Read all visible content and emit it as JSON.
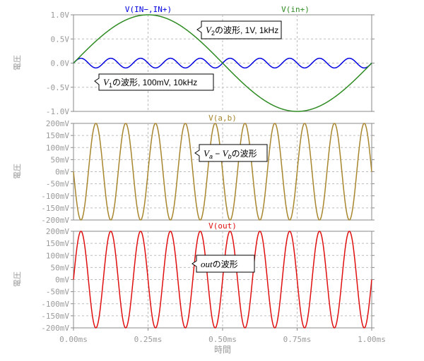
{
  "chart_data": [
    {
      "type": "line",
      "ylabel": "電圧",
      "xlim": [
        0,
        1.0
      ],
      "ylim": [
        -1.0,
        1.0
      ],
      "yticks": [
        "1.0V",
        "0.5V",
        "0.0V",
        "-0.5V",
        "-1.0V"
      ],
      "ytick_values": [
        1.0,
        0.5,
        0.0,
        -0.5,
        -1.0
      ],
      "grid": true,
      "series": [
        {
          "name": "V(IN−,IN+)",
          "color": "#0000e0",
          "amplitude": 0.1,
          "frequency_khz": 10,
          "phase": "sine"
        },
        {
          "name": "V(in+)",
          "color": "#2e8b22",
          "amplitude": 1.0,
          "frequency_khz": 1,
          "phase": "sine"
        }
      ],
      "annotations": [
        {
          "label": "V2の波形, 1V, 1kHz"
        },
        {
          "label": "V1の波形, 100mV, 10kHz"
        }
      ]
    },
    {
      "type": "line",
      "ylabel": "電圧",
      "xlim": [
        0,
        1.0
      ],
      "ylim": [
        -200,
        200
      ],
      "yticks": [
        "200mV",
        "150mV",
        "100mV",
        "50mV",
        "0mV",
        "-50mV",
        "-100mV",
        "-150mV",
        "-200mV"
      ],
      "ytick_values": [
        200,
        150,
        100,
        50,
        0,
        -50,
        -100,
        -150,
        -200
      ],
      "grid": true,
      "series": [
        {
          "name": "V(a,b)",
          "color": "#a8862e",
          "amplitude": 200,
          "frequency_khz": 10,
          "phase": "negative-sine"
        }
      ],
      "annotations": [
        {
          "label": "Va − Vbの波形"
        }
      ]
    },
    {
      "type": "line",
      "ylabel": "電圧",
      "xlabel": "時間",
      "xlim": [
        0,
        1.0
      ],
      "ylim": [
        -200,
        200
      ],
      "yticks": [
        "200mV",
        "150mV",
        "100mV",
        "50mV",
        "0mV",
        "-50mV",
        "-100mV",
        "-150mV",
        "-200mV"
      ],
      "ytick_values": [
        200,
        150,
        100,
        50,
        0,
        -50,
        -100,
        -150,
        -200
      ],
      "xticks": [
        "0.00ms",
        "0.25ms",
        "0.50ms",
        "0.75ms",
        "1.00ms"
      ],
      "xtick_values": [
        0,
        0.25,
        0.5,
        0.75,
        1.0
      ],
      "grid": true,
      "series": [
        {
          "name": "V(out)",
          "color": "#e01010",
          "amplitude": 200,
          "frequency_khz": 10,
          "phase": "sine"
        }
      ],
      "annotations": [
        {
          "label": "outの波形"
        }
      ]
    }
  ]
}
